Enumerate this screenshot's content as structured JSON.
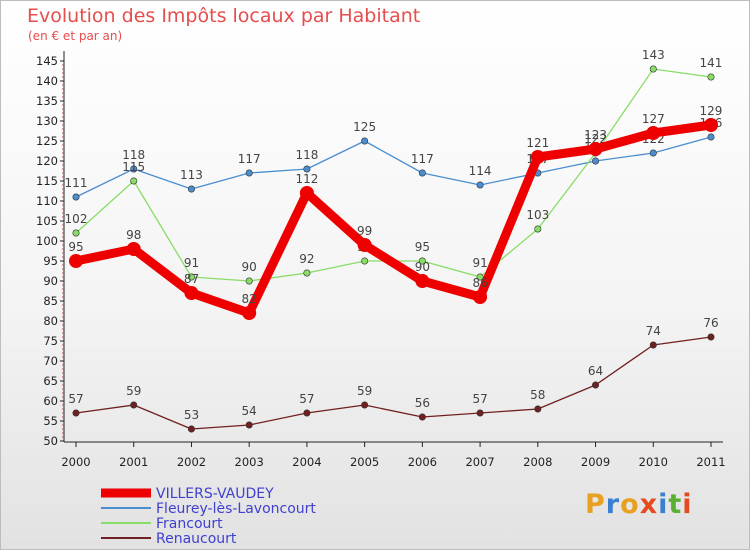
{
  "header": {
    "title": "Evolution des Impôts locaux par Habitant",
    "subtitle": "(en € et par an)"
  },
  "logo": {
    "text": "Proxiti",
    "colors": [
      "#e8a020",
      "#3a7fd0",
      "#e8a020",
      "#e84a20",
      "#3a7fd0",
      "#5ab030",
      "#e84a20"
    ]
  },
  "chart_data": {
    "type": "line",
    "title": "Evolution des Impôts locaux par Habitant",
    "subtitle": "(en € et par an)",
    "x": [
      "2000",
      "2001",
      "2002",
      "2003",
      "2004",
      "2005",
      "2006",
      "2007",
      "2008",
      "2009",
      "2010",
      "2011"
    ],
    "ylim": [
      50,
      145
    ],
    "yticks": [
      50,
      55,
      60,
      65,
      70,
      75,
      80,
      85,
      90,
      95,
      100,
      105,
      110,
      115,
      120,
      125,
      130,
      135,
      140,
      145
    ],
    "grid": false,
    "legend_position": "bottom-left",
    "series": [
      {
        "name": "VILLERS-VAUDEY",
        "color": "#ee0000",
        "emphasis": true,
        "values": [
          95,
          98,
          87,
          82,
          112,
          99,
          90,
          86,
          121,
          123,
          127,
          129
        ]
      },
      {
        "name": "Fleurey-lès-Lavoncourt",
        "color": "#4a8ed0",
        "emphasis": false,
        "values": [
          111,
          118,
          113,
          117,
          118,
          125,
          117,
          114,
          117,
          120,
          122,
          126
        ]
      },
      {
        "name": "Francourt",
        "color": "#88dd66",
        "emphasis": false,
        "values": [
          102,
          115,
          91,
          90,
          92,
          95,
          95,
          91,
          103,
          122,
          143,
          141
        ]
      },
      {
        "name": "Renaucourt",
        "color": "#702020",
        "emphasis": false,
        "values": [
          57,
          59,
          53,
          54,
          57,
          59,
          56,
          57,
          58,
          64,
          74,
          76
        ]
      }
    ]
  }
}
